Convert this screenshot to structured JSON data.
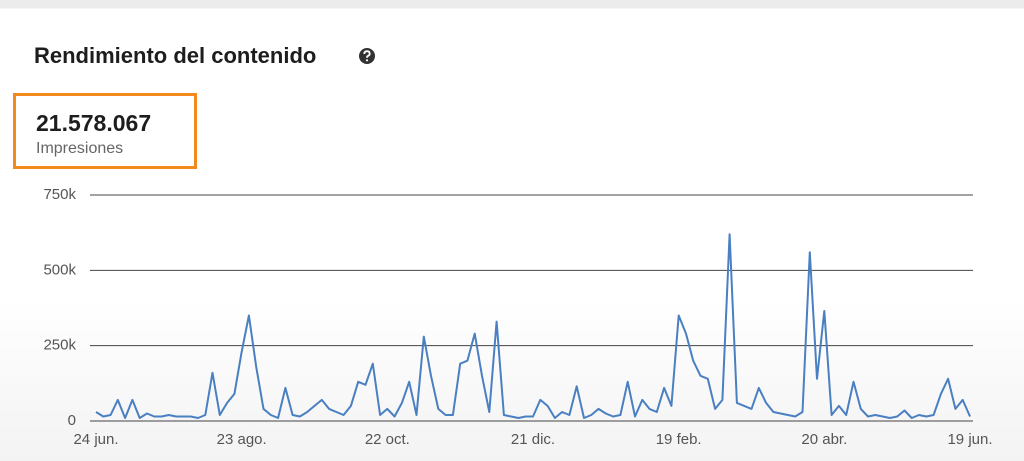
{
  "header": {
    "title": "Rendimiento del contenido"
  },
  "summary": {
    "value": "21.578.067",
    "label": "Impresiones"
  },
  "chart_data": {
    "type": "line",
    "categories": [
      "24 jun.",
      null,
      null,
      null,
      null,
      null,
      null,
      null,
      null,
      null,
      null,
      null,
      null,
      null,
      null,
      null,
      null,
      null,
      null,
      null,
      "23 ago.",
      null,
      null,
      null,
      null,
      null,
      null,
      null,
      null,
      null,
      null,
      null,
      null,
      null,
      null,
      null,
      null,
      null,
      null,
      null,
      "22 oct.",
      null,
      null,
      null,
      null,
      null,
      null,
      null,
      null,
      null,
      null,
      null,
      null,
      null,
      null,
      null,
      null,
      null,
      null,
      null,
      "21 dic.",
      null,
      null,
      null,
      null,
      null,
      null,
      null,
      null,
      null,
      null,
      null,
      null,
      null,
      null,
      null,
      null,
      null,
      null,
      null,
      "19 feb.",
      null,
      null,
      null,
      null,
      null,
      null,
      null,
      null,
      null,
      null,
      null,
      null,
      null,
      null,
      null,
      null,
      null,
      null,
      null,
      "20 abr.",
      null,
      null,
      null,
      null,
      null,
      null,
      null,
      null,
      null,
      null,
      null,
      null,
      null,
      null,
      null,
      null,
      null,
      null,
      null,
      "19 jun."
    ],
    "values": [
      30000,
      15000,
      20000,
      70000,
      10000,
      70000,
      10000,
      25000,
      15000,
      15000,
      20000,
      15000,
      15000,
      15000,
      10000,
      20000,
      160000,
      20000,
      60000,
      90000,
      230000,
      350000,
      180000,
      40000,
      20000,
      10000,
      110000,
      20000,
      15000,
      30000,
      50000,
      70000,
      40000,
      30000,
      20000,
      50000,
      130000,
      120000,
      190000,
      20000,
      40000,
      15000,
      60000,
      130000,
      20000,
      280000,
      150000,
      40000,
      20000,
      20000,
      190000,
      200000,
      290000,
      150000,
      30000,
      330000,
      20000,
      15000,
      10000,
      15000,
      15000,
      70000,
      50000,
      10000,
      30000,
      20000,
      115000,
      10000,
      20000,
      40000,
      25000,
      15000,
      20000,
      130000,
      15000,
      70000,
      40000,
      30000,
      110000,
      50000,
      350000,
      290000,
      200000,
      150000,
      140000,
      40000,
      70000,
      620000,
      60000,
      50000,
      40000,
      110000,
      60000,
      30000,
      25000,
      20000,
      15000,
      30000,
      560000,
      140000,
      365000,
      20000,
      50000,
      20000,
      130000,
      40000,
      15000,
      20000,
      15000,
      10000,
      15000,
      35000,
      10000,
      20000,
      15000,
      20000,
      90000,
      140000,
      40000,
      70000,
      15000
    ],
    "color": "#4a7fc1",
    "ylim": [
      0,
      750000
    ],
    "yticks": [
      0,
      {
        "value": 250000,
        "label": "250k"
      },
      {
        "value": 500000,
        "label": "500k"
      },
      {
        "value": 750000,
        "label": "750k"
      }
    ],
    "grid": true
  }
}
